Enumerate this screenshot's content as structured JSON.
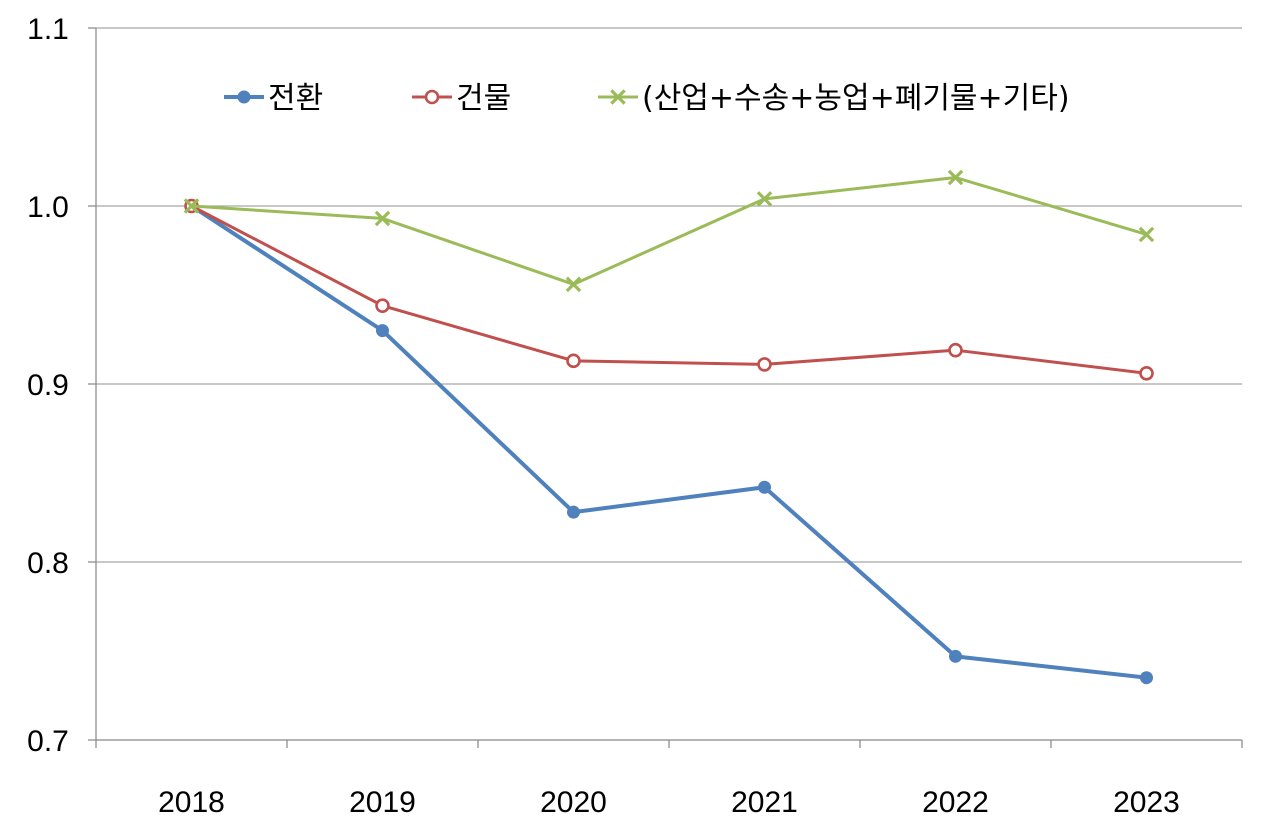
{
  "chart_data": {
    "type": "line",
    "title": "",
    "xlabel": "",
    "ylabel": "",
    "categories": [
      "2018",
      "2019",
      "2020",
      "2021",
      "2022",
      "2023"
    ],
    "ylim": [
      0.7,
      1.1
    ],
    "yticks": [
      0.7,
      0.8,
      0.9,
      1.0,
      1.1
    ],
    "ytick_labels": [
      "0.7",
      "0.8",
      "0.9",
      "1.0",
      "1.1"
    ],
    "grid": "horizontal",
    "legend_position": "top",
    "series": [
      {
        "name": "전환",
        "marker": "circle-filled",
        "color": "#4f81bd",
        "values": [
          1.0,
          0.93,
          0.828,
          0.842,
          0.747,
          0.735
        ]
      },
      {
        "name": "건물",
        "marker": "circle-open",
        "color": "#c0504d",
        "values": [
          1.0,
          0.944,
          0.913,
          0.911,
          0.919,
          0.906
        ]
      },
      {
        "name": "(산업+수송+농업+폐기물+기타)",
        "marker": "x",
        "color": "#9bbb59",
        "values": [
          1.0,
          0.993,
          0.956,
          1.004,
          1.016,
          0.984
        ]
      }
    ]
  }
}
